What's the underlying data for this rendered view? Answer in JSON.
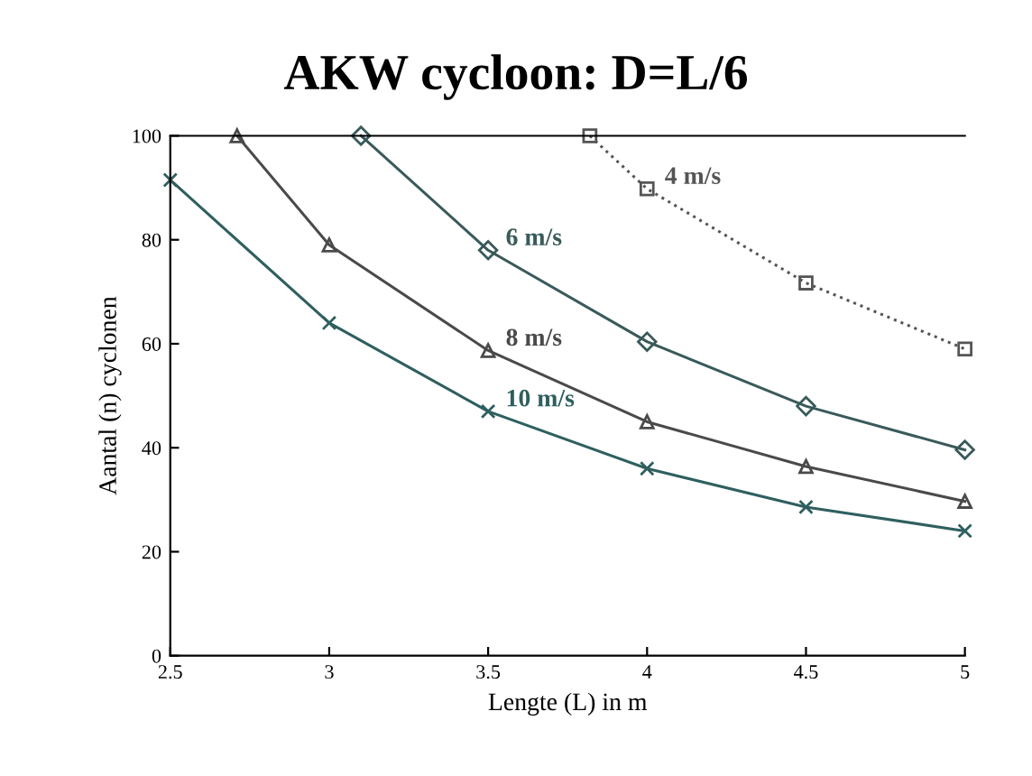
{
  "chart_data": {
    "type": "line",
    "title": "AKW cycloon: D=L/6",
    "xlabel": "Lengte (L) in m",
    "ylabel": "Aantal (n) cyclonen",
    "xlim": [
      2.5,
      5
    ],
    "xticks": [
      2.5,
      3,
      3.5,
      4,
      4.5,
      5
    ],
    "ylim": [
      0,
      100
    ],
    "yticks": [
      0,
      20,
      40,
      60,
      80,
      100
    ],
    "grid": false,
    "series": [
      {
        "name": "4 m/s",
        "color": "#555555",
        "x": [
          3.82,
          4,
          4.5,
          5
        ],
        "values": [
          100,
          89.8,
          71.7,
          59
        ],
        "marker": "square",
        "line_style": "dotted"
      },
      {
        "name": "6 m/s",
        "color": "#3a5a5a",
        "x": [
          3.1,
          3.5,
          4,
          4.5,
          5
        ],
        "values": [
          100,
          78,
          60.4,
          48,
          39.6
        ],
        "marker": "diamond",
        "line_style": "solid"
      },
      {
        "name": "8 m/s",
        "color": "#4a4a4a",
        "x": [
          2.71,
          3,
          3.5,
          4,
          4.5,
          5
        ],
        "values": [
          100,
          79,
          58.7,
          45,
          36.4,
          29.7
        ],
        "marker": "triangle",
        "line_style": "solid"
      },
      {
        "name": "10 m/s",
        "color": "#2f5f5f",
        "x": [
          2.5,
          3,
          3.5,
          4,
          4.5,
          5
        ],
        "values": [
          91.5,
          64,
          47,
          36,
          28.6,
          24
        ],
        "marker": "cross",
        "line_style": "solid"
      }
    ]
  }
}
